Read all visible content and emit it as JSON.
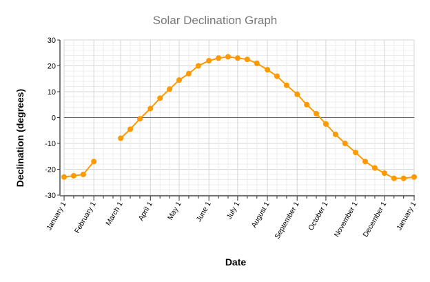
{
  "chart_data": {
    "type": "line",
    "title": "Solar Declination Graph",
    "xlabel": "Date",
    "ylabel": "Declination (degrees)",
    "ylim": [
      -30,
      30
    ],
    "yticks": [
      30,
      20,
      10,
      0,
      -10,
      -20,
      -30
    ],
    "xticks": [
      {
        "label": "January 1",
        "day": 0
      },
      {
        "label": "February 1",
        "day": 31
      },
      {
        "label": "March 1",
        "day": 59
      },
      {
        "label": "April 1",
        "day": 90
      },
      {
        "label": "May 1",
        "day": 120
      },
      {
        "label": "June 1",
        "day": 151
      },
      {
        "label": "July 1",
        "day": 181
      },
      {
        "label": "August 1",
        "day": 212
      },
      {
        "label": "September 1",
        "day": 243
      },
      {
        "label": "October 1",
        "day": 273
      },
      {
        "label": "November 1",
        "day": 304
      },
      {
        "label": "December 1",
        "day": 334
      },
      {
        "label": "January 1",
        "day": 365
      }
    ],
    "grid": true,
    "color": "#ff9900",
    "points": [
      {
        "date": "January 1",
        "day": 0,
        "y": -23
      },
      {
        "date": "January 11",
        "day": 10,
        "y": -22.5
      },
      {
        "date": "January 21",
        "day": 20,
        "y": -22
      },
      {
        "date": "February 1",
        "day": 31,
        "y": -17
      },
      {
        "date": "February 11",
        "day": 41,
        "y": null
      },
      {
        "date": "February 21",
        "day": 51,
        "y": null
      },
      {
        "date": "March 1",
        "day": 59,
        "y": -8
      },
      {
        "date": "March 11",
        "day": 69,
        "y": -4.5
      },
      {
        "date": "March 21",
        "day": 79,
        "y": -0.5
      },
      {
        "date": "April 1",
        "day": 90,
        "y": 3.5
      },
      {
        "date": "April 11",
        "day": 100,
        "y": 7.5
      },
      {
        "date": "April 21",
        "day": 110,
        "y": 11
      },
      {
        "date": "May 1",
        "day": 120,
        "y": 14.5
      },
      {
        "date": "May 11",
        "day": 130,
        "y": 17
      },
      {
        "date": "May 21",
        "day": 140,
        "y": 20
      },
      {
        "date": "June 1",
        "day": 151,
        "y": 22
      },
      {
        "date": "June 11",
        "day": 161,
        "y": 23
      },
      {
        "date": "June 21",
        "day": 171,
        "y": 23.5
      },
      {
        "date": "July 1",
        "day": 181,
        "y": 23
      },
      {
        "date": "July 11",
        "day": 191,
        "y": 22.5
      },
      {
        "date": "July 21",
        "day": 201,
        "y": 21
      },
      {
        "date": "August 1",
        "day": 212,
        "y": 18.5
      },
      {
        "date": "August 11",
        "day": 222,
        "y": 16
      },
      {
        "date": "August 21",
        "day": 232,
        "y": 12.5
      },
      {
        "date": "September 1",
        "day": 243,
        "y": 9
      },
      {
        "date": "September 11",
        "day": 253,
        "y": 5
      },
      {
        "date": "September 21",
        "day": 263,
        "y": 1.5
      },
      {
        "date": "October 1",
        "day": 273,
        "y": -2.5
      },
      {
        "date": "October 11",
        "day": 283,
        "y": -6.5
      },
      {
        "date": "October 21",
        "day": 293,
        "y": -10
      },
      {
        "date": "November 1",
        "day": 304,
        "y": -13.5
      },
      {
        "date": "November 11",
        "day": 314,
        "y": -17
      },
      {
        "date": "November 21",
        "day": 324,
        "y": -19.5
      },
      {
        "date": "December 1",
        "day": 334,
        "y": -21.5
      },
      {
        "date": "December 11",
        "day": 344,
        "y": -23.5
      },
      {
        "date": "December 21",
        "day": 354,
        "y": -23.5
      },
      {
        "date": "January 1",
        "day": 365,
        "y": -23
      }
    ]
  }
}
